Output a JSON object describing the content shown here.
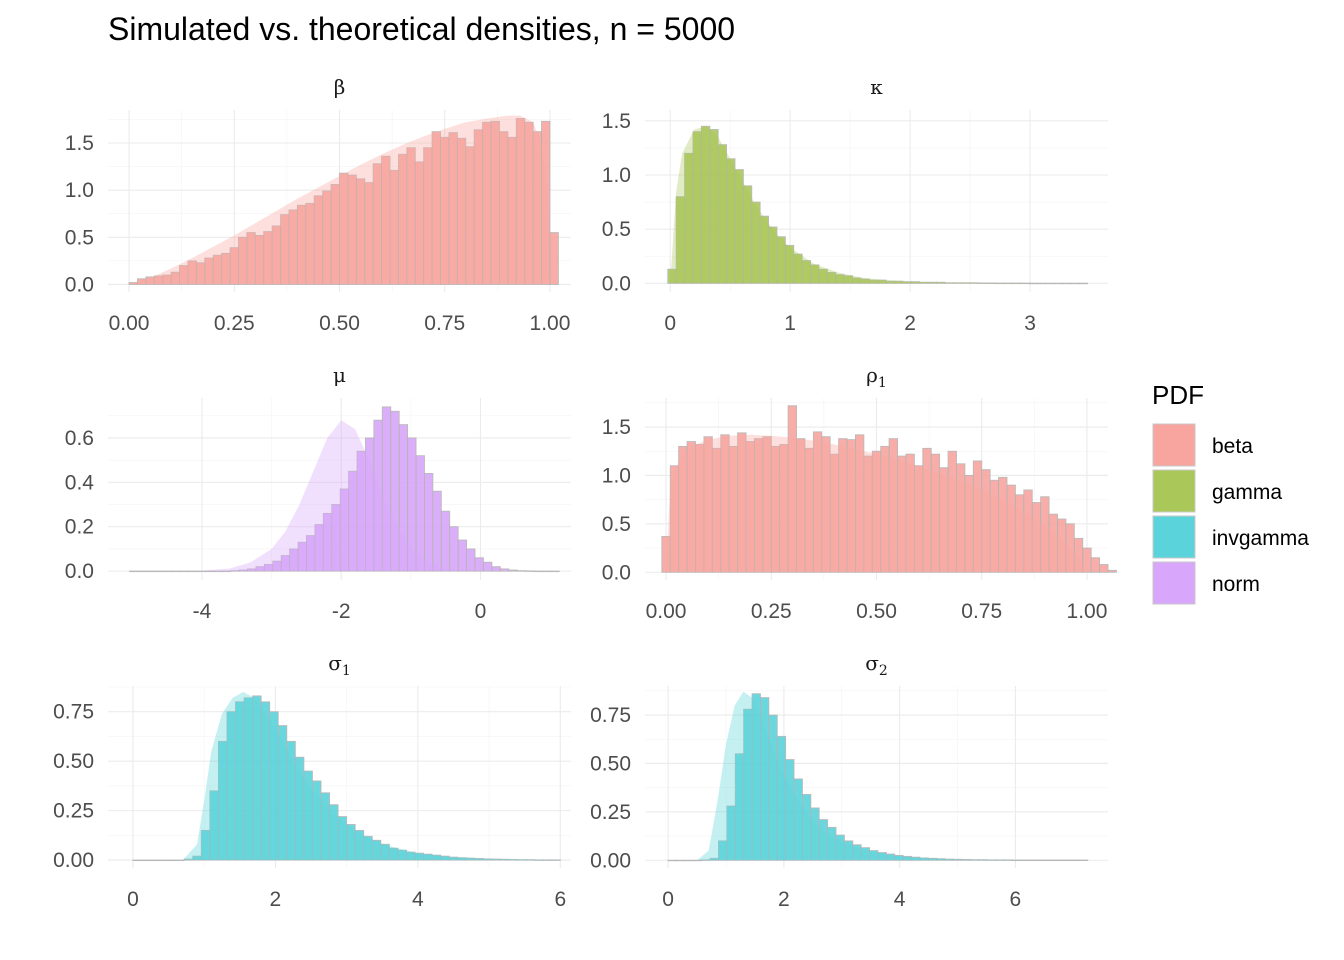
{
  "title": "Simulated vs. theoretical densities, n = 5000",
  "legend": {
    "title": "PDF",
    "items": [
      {
        "label": "beta",
        "color": "#F8A59F"
      },
      {
        "label": "gamma",
        "color": "#AAC759"
      },
      {
        "label": "invgamma",
        "color": "#5AD3DB"
      },
      {
        "label": "norm",
        "color": "#D8A6FA"
      }
    ]
  },
  "chart_data": [
    {
      "type": "bar",
      "facet": "β",
      "facet_sub": "",
      "pdf": "beta",
      "xlim": [
        -0.05,
        1.05
      ],
      "ylim": [
        -0.08,
        1.85
      ],
      "xticks": [
        {
          "v": 0,
          "l": "0.00"
        },
        {
          "v": 0.25,
          "l": "0.25"
        },
        {
          "v": 0.5,
          "l": "0.50"
        },
        {
          "v": 0.75,
          "l": "0.75"
        },
        {
          "v": 1.0,
          "l": "1.00"
        }
      ],
      "yticks": [
        {
          "v": 0,
          "l": "0.0"
        },
        {
          "v": 0.5,
          "l": "0.5"
        },
        {
          "v": 1.0,
          "l": "1.0"
        },
        {
          "v": 1.5,
          "l": "1.5"
        }
      ],
      "bin_start": 0.0,
      "bin_width": 0.02,
      "values": [
        0.02,
        0.06,
        0.08,
        0.09,
        0.1,
        0.13,
        0.2,
        0.25,
        0.23,
        0.28,
        0.31,
        0.33,
        0.39,
        0.5,
        0.55,
        0.52,
        0.56,
        0.62,
        0.74,
        0.79,
        0.84,
        0.86,
        0.94,
        0.99,
        1.06,
        1.18,
        1.16,
        1.12,
        1.08,
        1.28,
        1.36,
        1.21,
        1.38,
        1.45,
        1.3,
        1.45,
        1.62,
        1.56,
        1.61,
        1.55,
        1.46,
        1.64,
        1.72,
        1.73,
        1.62,
        1.56,
        1.76,
        1.72,
        1.62,
        1.73,
        0.55
      ],
      "density": [
        [
          0,
          0
        ],
        [
          0.05,
          0.07
        ],
        [
          0.1,
          0.17
        ],
        [
          0.15,
          0.28
        ],
        [
          0.2,
          0.4
        ],
        [
          0.25,
          0.52
        ],
        [
          0.3,
          0.65
        ],
        [
          0.35,
          0.78
        ],
        [
          0.4,
          0.91
        ],
        [
          0.45,
          1.03
        ],
        [
          0.5,
          1.15
        ],
        [
          0.55,
          1.27
        ],
        [
          0.6,
          1.38
        ],
        [
          0.65,
          1.48
        ],
        [
          0.7,
          1.57
        ],
        [
          0.75,
          1.65
        ],
        [
          0.8,
          1.72
        ],
        [
          0.85,
          1.76
        ],
        [
          0.9,
          1.79
        ],
        [
          0.93,
          1.79
        ],
        [
          0.96,
          1.72
        ],
        [
          0.98,
          1.5
        ],
        [
          0.995,
          0.9
        ],
        [
          1.0,
          0.0
        ]
      ]
    },
    {
      "type": "bar",
      "facet": "κ",
      "facet_sub": "",
      "pdf": "gamma",
      "xlim": [
        -0.21,
        3.65
      ],
      "ylim": [
        -0.08,
        1.6
      ],
      "xticks": [
        {
          "v": 0,
          "l": "0"
        },
        {
          "v": 1,
          "l": "1"
        },
        {
          "v": 2,
          "l": "2"
        },
        {
          "v": 3,
          "l": "3"
        }
      ],
      "yticks": [
        {
          "v": 0,
          "l": "0.0"
        },
        {
          "v": 0.5,
          "l": "0.5"
        },
        {
          "v": 1.0,
          "l": "1.0"
        },
        {
          "v": 1.5,
          "l": "1.5"
        }
      ],
      "bin_start": -0.02,
      "bin_width": 0.07,
      "values": [
        0.13,
        0.8,
        1.2,
        1.4,
        1.45,
        1.42,
        1.28,
        1.15,
        1.05,
        0.9,
        0.75,
        0.62,
        0.52,
        0.43,
        0.35,
        0.27,
        0.21,
        0.17,
        0.13,
        0.1,
        0.08,
        0.07,
        0.05,
        0.04,
        0.03,
        0.03,
        0.02,
        0.02,
        0.015,
        0.015,
        0.01,
        0.01,
        0.01,
        0.005,
        0.005,
        0.005,
        0.005,
        0.003,
        0.003,
        0.002,
        0.002,
        0.002,
        0.002,
        0.001,
        0.001,
        0.001,
        0.001,
        0.001,
        0.001,
        0.001
      ],
      "density": [
        [
          0,
          0
        ],
        [
          0.05,
          0.85
        ],
        [
          0.1,
          1.2
        ],
        [
          0.2,
          1.42
        ],
        [
          0.3,
          1.45
        ],
        [
          0.4,
          1.35
        ],
        [
          0.5,
          1.15
        ],
        [
          0.6,
          0.95
        ],
        [
          0.7,
          0.75
        ],
        [
          0.8,
          0.58
        ],
        [
          0.9,
          0.44
        ],
        [
          1.0,
          0.33
        ],
        [
          1.2,
          0.18
        ],
        [
          1.4,
          0.1
        ],
        [
          1.6,
          0.05
        ],
        [
          1.8,
          0.03
        ],
        [
          2.0,
          0.015
        ],
        [
          2.5,
          0.004
        ],
        [
          3.0,
          0.001
        ],
        [
          3.45,
          0
        ]
      ]
    },
    {
      "type": "bar",
      "facet": "μ",
      "facet_sub": "",
      "pdf": "norm",
      "xlim": [
        -5.35,
        1.3
      ],
      "ylim": [
        -0.04,
        0.78
      ],
      "xticks": [
        {
          "v": -4,
          "l": "-4"
        },
        {
          "v": -2,
          "l": "-2"
        },
        {
          "v": 0,
          "l": "0"
        }
      ],
      "yticks": [
        {
          "v": 0,
          "l": "0.0"
        },
        {
          "v": 0.2,
          "l": "0.2"
        },
        {
          "v": 0.4,
          "l": "0.4"
        },
        {
          "v": 0.6,
          "l": "0.6"
        }
      ],
      "bin_start": -5.04,
      "bin_width": 0.121,
      "values": [
        0,
        0,
        0,
        0,
        0,
        0,
        0,
        0,
        0,
        0,
        0,
        0,
        0.002,
        0.005,
        0.01,
        0.02,
        0.03,
        0.045,
        0.07,
        0.1,
        0.13,
        0.16,
        0.21,
        0.26,
        0.3,
        0.37,
        0.45,
        0.54,
        0.6,
        0.68,
        0.74,
        0.72,
        0.66,
        0.6,
        0.52,
        0.44,
        0.36,
        0.27,
        0.2,
        0.14,
        0.1,
        0.06,
        0.04,
        0.02,
        0.01,
        0.005,
        0.002,
        0.001,
        0,
        0,
        0
      ],
      "density": [
        [
          -4,
          0.002
        ],
        [
          -3.6,
          0.012
        ],
        [
          -3.3,
          0.04
        ],
        [
          -3.0,
          0.1
        ],
        [
          -2.8,
          0.18
        ],
        [
          -2.6,
          0.3
        ],
        [
          -2.4,
          0.45
        ],
        [
          -2.2,
          0.6
        ],
        [
          -2.0,
          0.68
        ],
        [
          -1.8,
          0.64
        ],
        [
          -1.6,
          0.5
        ],
        [
          -1.4,
          0.34
        ],
        [
          -1.2,
          0.2
        ],
        [
          -1.0,
          0.11
        ],
        [
          -0.8,
          0.05
        ],
        [
          -0.5,
          0.012
        ],
        [
          0,
          0.0005
        ]
      ]
    },
    {
      "type": "bar",
      "facet": "ρ",
      "facet_sub": "1",
      "pdf": "beta",
      "xlim": [
        -0.05,
        1.05
      ],
      "ylim": [
        -0.08,
        1.8
      ],
      "xticks": [
        {
          "v": 0,
          "l": "0.00"
        },
        {
          "v": 0.25,
          "l": "0.25"
        },
        {
          "v": 0.5,
          "l": "0.50"
        },
        {
          "v": 0.75,
          "l": "0.75"
        },
        {
          "v": 1.0,
          "l": "1.00"
        }
      ],
      "yticks": [
        {
          "v": 0,
          "l": "0.0"
        },
        {
          "v": 0.5,
          "l": "0.5"
        },
        {
          "v": 1.0,
          "l": "1.0"
        },
        {
          "v": 1.5,
          "l": "1.5"
        }
      ],
      "bin_start": -0.01,
      "bin_width": 0.02,
      "values": [
        0.37,
        1.1,
        1.3,
        1.35,
        1.32,
        1.4,
        1.28,
        1.42,
        1.3,
        1.44,
        1.35,
        1.38,
        1.4,
        1.3,
        1.32,
        1.72,
        1.38,
        1.28,
        1.45,
        1.4,
        1.22,
        1.38,
        1.37,
        1.42,
        1.2,
        1.25,
        1.3,
        1.38,
        1.2,
        1.22,
        1.1,
        1.28,
        1.22,
        1.08,
        1.25,
        1.12,
        1.0,
        1.15,
        1.06,
        0.95,
        0.98,
        0.9,
        0.8,
        0.85,
        0.72,
        0.78,
        0.6,
        0.55,
        0.5,
        0.35,
        0.25,
        0.15,
        0.08,
        0.02
      ],
      "density": [
        [
          0,
          0
        ],
        [
          0.01,
          0.9
        ],
        [
          0.03,
          1.15
        ],
        [
          0.06,
          1.3
        ],
        [
          0.1,
          1.37
        ],
        [
          0.15,
          1.41
        ],
        [
          0.2,
          1.42
        ],
        [
          0.25,
          1.41
        ],
        [
          0.3,
          1.39
        ],
        [
          0.35,
          1.36
        ],
        [
          0.4,
          1.32
        ],
        [
          0.45,
          1.27
        ],
        [
          0.5,
          1.22
        ],
        [
          0.55,
          1.16
        ],
        [
          0.6,
          1.1
        ],
        [
          0.65,
          1.02
        ],
        [
          0.7,
          0.94
        ],
        [
          0.75,
          0.85
        ],
        [
          0.8,
          0.75
        ],
        [
          0.85,
          0.62
        ],
        [
          0.9,
          0.48
        ],
        [
          0.95,
          0.3
        ],
        [
          0.98,
          0.15
        ],
        [
          1.0,
          0
        ]
      ]
    },
    {
      "type": "bar",
      "facet": "σ",
      "facet_sub": "1",
      "pdf": "invgamma",
      "xlim": [
        -0.35,
        6.15
      ],
      "ylim": [
        -0.04,
        0.88
      ],
      "xticks": [
        {
          "v": 0,
          "l": "0"
        },
        {
          "v": 2,
          "l": "2"
        },
        {
          "v": 4,
          "l": "4"
        },
        {
          "v": 6,
          "l": "6"
        }
      ],
      "yticks": [
        {
          "v": 0,
          "l": "0.00"
        },
        {
          "v": 0.25,
          "l": "0.25"
        },
        {
          "v": 0.5,
          "l": "0.50"
        },
        {
          "v": 0.75,
          "l": "0.75"
        }
      ],
      "bin_start": 0.0,
      "bin_width": 0.12,
      "values": [
        0,
        0,
        0,
        0,
        0,
        0,
        0.005,
        0.02,
        0.15,
        0.35,
        0.6,
        0.75,
        0.8,
        0.82,
        0.83,
        0.8,
        0.75,
        0.68,
        0.6,
        0.52,
        0.45,
        0.4,
        0.34,
        0.28,
        0.22,
        0.18,
        0.15,
        0.12,
        0.1,
        0.08,
        0.06,
        0.05,
        0.04,
        0.035,
        0.03,
        0.025,
        0.02,
        0.015,
        0.012,
        0.01,
        0.008,
        0.006,
        0.005,
        0.004,
        0.003,
        0.002,
        0.002,
        0.001,
        0.001,
        0.001
      ],
      "density": [
        [
          0.7,
          0
        ],
        [
          0.9,
          0.08
        ],
        [
          1.0,
          0.3
        ],
        [
          1.1,
          0.55
        ],
        [
          1.25,
          0.74
        ],
        [
          1.4,
          0.82
        ],
        [
          1.55,
          0.85
        ],
        [
          1.7,
          0.82
        ],
        [
          1.9,
          0.72
        ],
        [
          2.1,
          0.6
        ],
        [
          2.3,
          0.47
        ],
        [
          2.5,
          0.36
        ],
        [
          2.8,
          0.24
        ],
        [
          3.1,
          0.15
        ],
        [
          3.5,
          0.08
        ],
        [
          4.0,
          0.035
        ],
        [
          4.5,
          0.015
        ],
        [
          5.0,
          0.006
        ],
        [
          6.0,
          0.001
        ]
      ]
    },
    {
      "type": "bar",
      "facet": "σ",
      "facet_sub": "2",
      "pdf": "invgamma",
      "xlim": [
        -0.4,
        7.6
      ],
      "ylim": [
        -0.04,
        0.9
      ],
      "xticks": [
        {
          "v": 0,
          "l": "0"
        },
        {
          "v": 2,
          "l": "2"
        },
        {
          "v": 4,
          "l": "4"
        },
        {
          "v": 6,
          "l": "6"
        }
      ],
      "yticks": [
        {
          "v": 0,
          "l": "0.00"
        },
        {
          "v": 0.25,
          "l": "0.25"
        },
        {
          "v": 0.5,
          "l": "0.50"
        },
        {
          "v": 0.75,
          "l": "0.75"
        }
      ],
      "bin_start": 0.0,
      "bin_width": 0.145,
      "values": [
        0,
        0,
        0,
        0,
        0.002,
        0.01,
        0.1,
        0.28,
        0.55,
        0.78,
        0.86,
        0.84,
        0.75,
        0.64,
        0.52,
        0.42,
        0.34,
        0.27,
        0.21,
        0.17,
        0.13,
        0.1,
        0.08,
        0.065,
        0.05,
        0.04,
        0.032,
        0.025,
        0.02,
        0.016,
        0.012,
        0.01,
        0.008,
        0.006,
        0.005,
        0.004,
        0.003,
        0.003,
        0.002,
        0.002,
        0.002,
        0.001,
        0.001,
        0.001,
        0.001,
        0.001,
        0.001,
        0.001,
        0.001,
        0.001
      ],
      "density": [
        [
          0.5,
          0
        ],
        [
          0.7,
          0.05
        ],
        [
          0.85,
          0.3
        ],
        [
          1.0,
          0.6
        ],
        [
          1.15,
          0.8
        ],
        [
          1.3,
          0.87
        ],
        [
          1.45,
          0.84
        ],
        [
          1.6,
          0.74
        ],
        [
          1.8,
          0.58
        ],
        [
          2.0,
          0.44
        ],
        [
          2.3,
          0.28
        ],
        [
          2.6,
          0.17
        ],
        [
          3.0,
          0.09
        ],
        [
          3.5,
          0.04
        ],
        [
          4.0,
          0.018
        ],
        [
          5.0,
          0.004
        ],
        [
          6.0,
          0.001
        ],
        [
          7.0,
          0
        ]
      ]
    }
  ]
}
